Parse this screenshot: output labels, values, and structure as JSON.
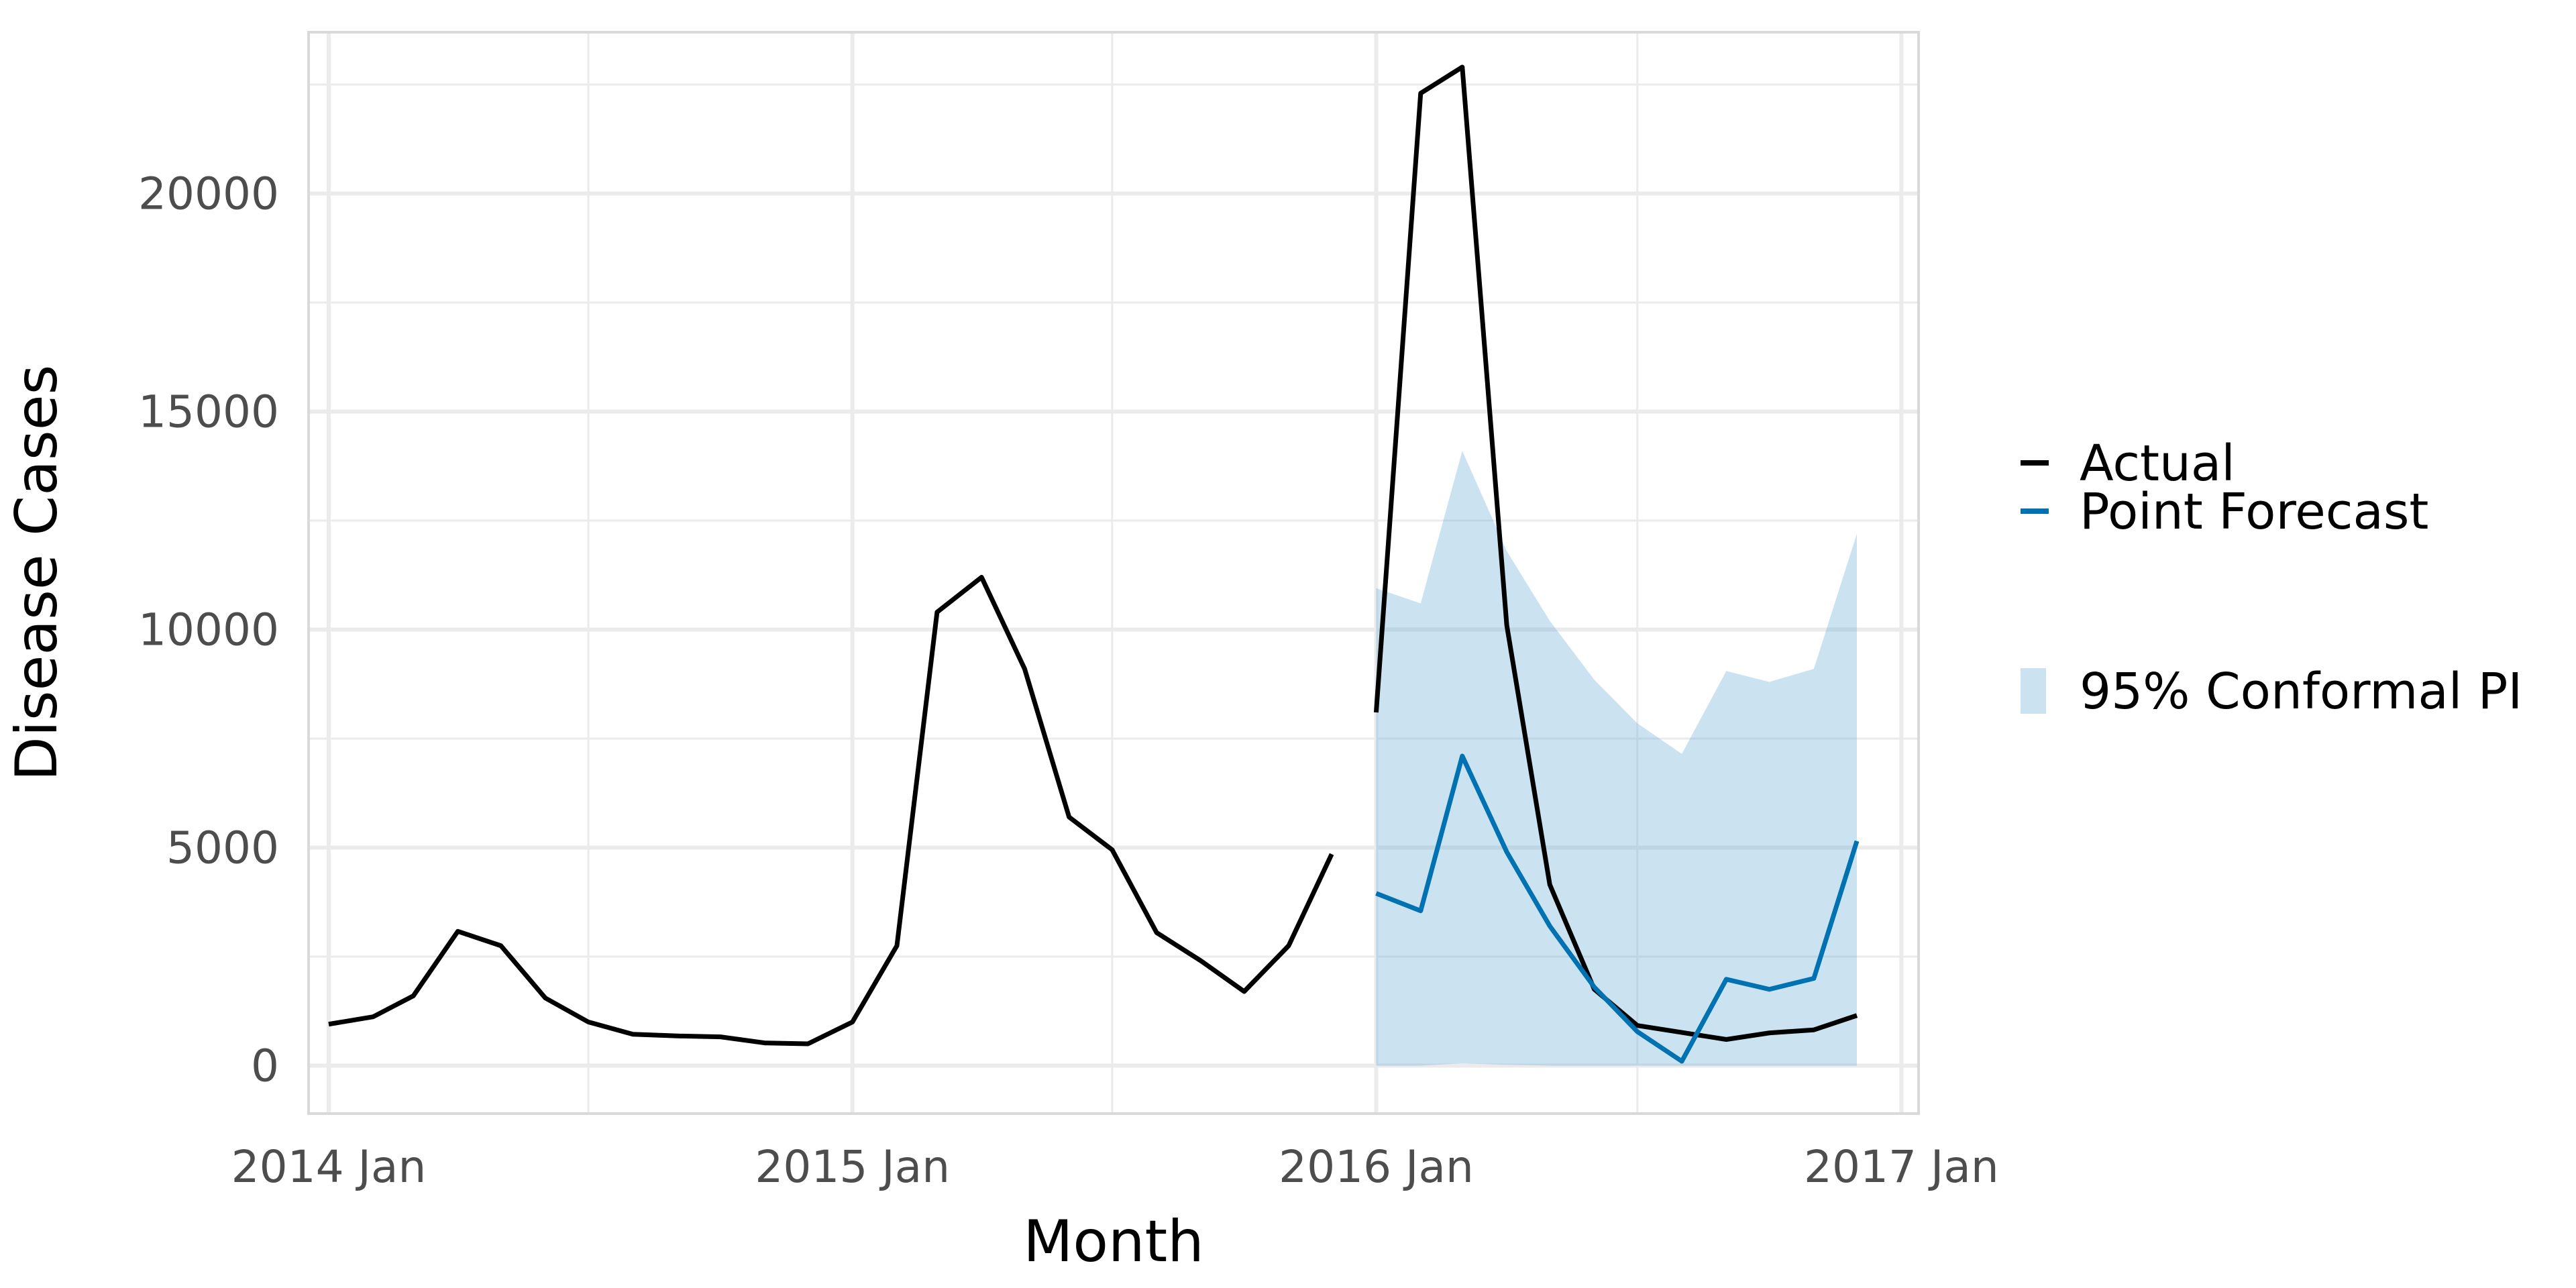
{
  "chart_data": {
    "type": "line",
    "title": "",
    "xlabel": "Month",
    "ylabel": "Disease Cases",
    "x_axis": {
      "type": "date",
      "range": [
        "2013-12-18",
        "2017-01-13"
      ],
      "ticks": [
        {
          "date": "2014-01-01",
          "label": "2014 Jan"
        },
        {
          "date": "2015-01-01",
          "label": "2015 Jan"
        },
        {
          "date": "2016-01-01",
          "label": "2016 Jan"
        },
        {
          "date": "2017-01-01",
          "label": "2017 Jan"
        }
      ]
    },
    "y_axis": {
      "range": [
        -1100,
        23700
      ],
      "ticks": [
        0,
        5000,
        10000,
        15000,
        20000
      ]
    },
    "grid": true,
    "legend_position": "right",
    "series": [
      {
        "name": "Actual",
        "color": "#000000",
        "points": [
          [
            "2014-01-01",
            950
          ],
          [
            "2014-02-01",
            1120
          ],
          [
            "2014-03-01",
            1600
          ],
          [
            "2014-04-01",
            3080
          ],
          [
            "2014-05-01",
            2750
          ],
          [
            "2014-06-01",
            1550
          ],
          [
            "2014-07-01",
            1000
          ],
          [
            "2014-08-01",
            720
          ],
          [
            "2014-09-01",
            680
          ],
          [
            "2014-10-01",
            660
          ],
          [
            "2014-11-01",
            520
          ],
          [
            "2014-12-01",
            500
          ],
          [
            "2015-01-01",
            1000
          ],
          [
            "2015-02-01",
            2750
          ],
          [
            "2015-03-01",
            10400
          ],
          [
            "2015-04-01",
            11200
          ],
          [
            "2015-05-01",
            9100
          ],
          [
            "2015-06-01",
            5700
          ],
          [
            "2015-07-01",
            4950
          ],
          [
            "2015-08-01",
            3050
          ],
          [
            "2015-09-01",
            2400
          ],
          [
            "2015-10-01",
            1700
          ],
          [
            "2015-11-01",
            2750
          ],
          [
            "2015-12-01",
            4850
          ]
        ]
      },
      {
        "name": "Actual",
        "color": "#000000",
        "points": [
          [
            "2016-01-01",
            8100
          ],
          [
            "2016-02-01",
            22300
          ],
          [
            "2016-03-01",
            22900
          ],
          [
            "2016-04-01",
            10100
          ],
          [
            "2016-05-01",
            4150
          ],
          [
            "2016-06-01",
            1750
          ],
          [
            "2016-07-01",
            920
          ],
          [
            "2016-08-01",
            760
          ],
          [
            "2016-09-01",
            600
          ],
          [
            "2016-10-01",
            750
          ],
          [
            "2016-11-01",
            820
          ],
          [
            "2016-12-01",
            1150
          ]
        ]
      },
      {
        "name": "Point Forecast",
        "color": "#0072B2",
        "points": [
          [
            "2016-01-01",
            3950
          ],
          [
            "2016-02-01",
            3550
          ],
          [
            "2016-03-01",
            7100
          ],
          [
            "2016-04-01",
            4900
          ],
          [
            "2016-05-01",
            3200
          ],
          [
            "2016-06-01",
            1800
          ],
          [
            "2016-07-01",
            780
          ],
          [
            "2016-08-01",
            100
          ],
          [
            "2016-09-01",
            1980
          ],
          [
            "2016-10-01",
            1750
          ],
          [
            "2016-11-01",
            2000
          ],
          [
            "2016-12-01",
            5150
          ]
        ]
      }
    ],
    "band": {
      "name": "95% Conformal PI",
      "color": "#6aaed6",
      "opacity": 0.35,
      "points": [
        [
          "2016-01-01",
          0,
          10950
        ],
        [
          "2016-02-01",
          0,
          10600
        ],
        [
          "2016-03-01",
          50,
          14100
        ],
        [
          "2016-04-01",
          20,
          11800
        ],
        [
          "2016-05-01",
          0,
          10200
        ],
        [
          "2016-06-01",
          0,
          8850
        ],
        [
          "2016-07-01",
          0,
          7850
        ],
        [
          "2016-08-01",
          0,
          7150
        ],
        [
          "2016-09-01",
          0,
          9050
        ],
        [
          "2016-10-01",
          0,
          8800
        ],
        [
          "2016-11-01",
          0,
          9100
        ],
        [
          "2016-12-01",
          0,
          12200
        ]
      ]
    },
    "legend": [
      {
        "label": "Actual",
        "kind": "line",
        "color": "#000000"
      },
      {
        "label": "Point Forecast",
        "kind": "line",
        "color": "#0072B2"
      },
      {
        "label": "95% Conformal PI",
        "kind": "fill",
        "color": "#6aaed6"
      }
    ]
  }
}
